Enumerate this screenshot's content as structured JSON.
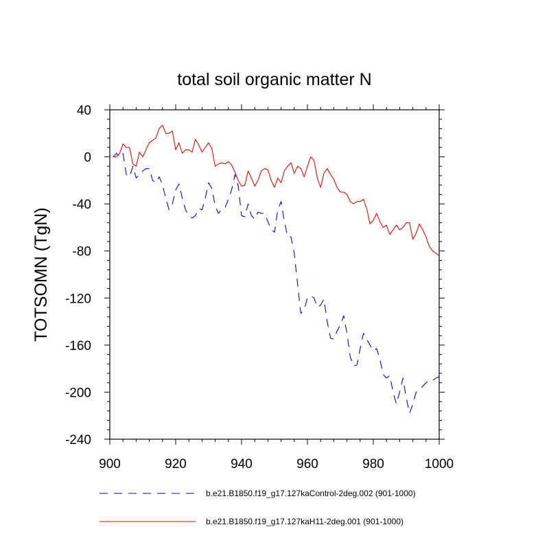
{
  "chart_data": {
    "type": "line",
    "title": "total soil organic matter N",
    "xlabel": "",
    "ylabel": "TOTSOMN  (TgN)",
    "xlim": [
      900,
      1000
    ],
    "ylim": [
      -240,
      40
    ],
    "x_ticks": [
      900,
      920,
      940,
      960,
      980,
      1000
    ],
    "x_tick_labels": [
      "900",
      "920",
      "940",
      "960",
      "980",
      "1000"
    ],
    "y_ticks": [
      40,
      0,
      -40,
      -80,
      -120,
      -160,
      -200,
      -240
    ],
    "y_tick_labels": [
      "40",
      "0",
      "-40",
      "-80",
      "-120",
      "-160",
      "-200",
      "-240"
    ],
    "legend": "bottom",
    "series": [
      {
        "name": "b.e21.B1850.f19_g17.127kaControl-2deg.002 (901-1000)",
        "color": "#0000ff",
        "style": "dashed",
        "x": [
          901,
          902,
          903,
          904,
          905,
          906,
          907,
          908,
          909,
          910,
          911,
          912,
          913,
          914,
          915,
          916,
          917,
          918,
          919,
          920,
          921,
          922,
          923,
          924,
          925,
          926,
          927,
          928,
          929,
          930,
          931,
          932,
          933,
          934,
          935,
          936,
          937,
          938,
          939,
          940,
          941,
          942,
          943,
          944,
          945,
          946,
          947,
          948,
          949,
          950,
          951,
          952,
          953,
          954,
          955,
          956,
          957,
          958,
          959,
          960,
          961,
          962,
          963,
          964,
          965,
          966,
          967,
          968,
          969,
          970,
          971,
          972,
          973,
          974,
          975,
          976,
          977,
          978,
          979,
          980,
          981,
          982,
          983,
          984,
          985,
          986,
          987,
          988,
          989,
          990,
          991,
          992,
          993,
          994,
          995,
          996,
          997,
          998,
          999,
          1000
        ],
        "values": [
          0,
          3,
          0,
          3,
          -15,
          -17,
          -8,
          -18,
          -15,
          -12,
          -10,
          -10,
          -20,
          -22,
          -17,
          -24,
          -35,
          -45,
          -40,
          -28,
          -23,
          -35,
          -45,
          -50,
          -52,
          -50,
          -44,
          -45,
          -35,
          -22,
          -27,
          -42,
          -48,
          -44,
          -43,
          -36,
          -28,
          -15,
          -25,
          -50,
          -51,
          -40,
          -50,
          -53,
          -47,
          -48,
          -48,
          -55,
          -62,
          -64,
          -45,
          -38,
          -55,
          -68,
          -68,
          -82,
          -108,
          -133,
          -130,
          -120,
          -118,
          -120,
          -128,
          -126,
          -121,
          -140,
          -154,
          -155,
          -148,
          -143,
          -135,
          -150,
          -170,
          -178,
          -177,
          -163,
          -150,
          -155,
          -160,
          -165,
          -163,
          -172,
          -185,
          -188,
          -186,
          -200,
          -210,
          -200,
          -188,
          -205,
          -218,
          -210,
          -200,
          -198,
          -195,
          -192,
          -190,
          -190,
          -188,
          -187
        ]
      },
      {
        "name": "b.e21.B1850.f19_g17.127kaH11-2deg.001 (901-1000)",
        "color": "#ff0000",
        "style": "solid",
        "x": [
          901,
          902,
          903,
          904,
          905,
          906,
          907,
          908,
          909,
          910,
          911,
          912,
          913,
          914,
          915,
          916,
          917,
          918,
          919,
          920,
          921,
          922,
          923,
          924,
          925,
          926,
          927,
          928,
          929,
          930,
          931,
          932,
          933,
          934,
          935,
          936,
          937,
          938,
          939,
          940,
          941,
          942,
          943,
          944,
          945,
          946,
          947,
          948,
          949,
          950,
          951,
          952,
          953,
          954,
          955,
          956,
          957,
          958,
          959,
          960,
          961,
          962,
          963,
          964,
          965,
          966,
          967,
          968,
          969,
          970,
          971,
          972,
          973,
          974,
          975,
          976,
          977,
          978,
          979,
          980,
          981,
          982,
          983,
          984,
          985,
          986,
          987,
          988,
          989,
          990,
          991,
          992,
          993,
          994,
          995,
          996,
          997,
          998,
          999,
          1000
        ],
        "values": [
          0,
          0,
          3,
          11,
          8,
          8,
          -6,
          -8,
          4,
          0,
          6,
          12,
          14,
          16,
          24,
          27,
          20,
          20,
          22,
          6,
          12,
          3,
          6,
          6,
          4,
          15,
          10,
          4,
          8,
          12,
          7,
          -8,
          -6,
          -5,
          -6,
          -4,
          -7,
          -13,
          -20,
          -25,
          -24,
          -12,
          -18,
          -25,
          -20,
          -12,
          -10,
          -11,
          -20,
          -26,
          -18,
          -22,
          -12,
          -8,
          -5,
          -14,
          -8,
          -10,
          -17,
          -8,
          0,
          -3,
          -18,
          -26,
          -14,
          -10,
          -15,
          -19,
          -26,
          -30,
          -30,
          -32,
          -38,
          -40,
          -38,
          -38,
          -36,
          -44,
          -57,
          -54,
          -48,
          -55,
          -60,
          -58,
          -66,
          -62,
          -58,
          -62,
          -60,
          -56,
          -56,
          -70,
          -65,
          -57,
          -62,
          -68,
          -76,
          -80,
          -82,
          -84
        ]
      }
    ]
  }
}
